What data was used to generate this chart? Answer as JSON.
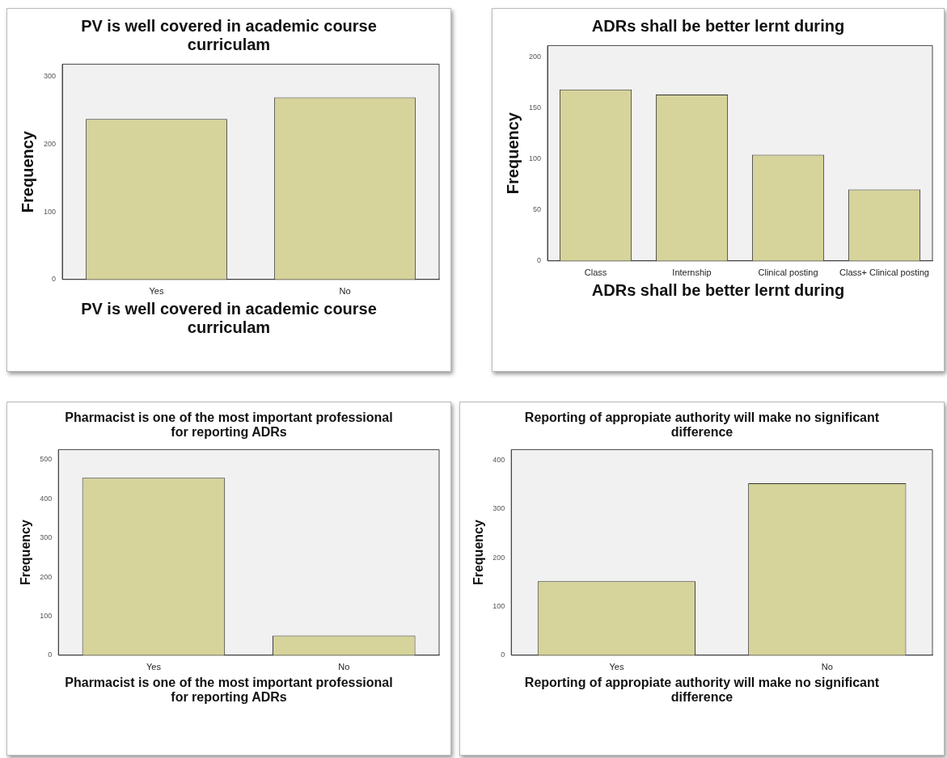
{
  "chart_data": [
    {
      "type": "bar",
      "title": "PV is well covered in academic course curriculam",
      "xlabel": "PV is well covered in academic course curriculam",
      "ylabel": "Frequency",
      "categories": [
        "Yes",
        "No"
      ],
      "values": [
        237,
        269
      ],
      "color": "#d6d49a",
      "ylim": [
        0,
        318
      ],
      "yticks": [
        0,
        100,
        200,
        300
      ]
    },
    {
      "type": "bar",
      "title": "ADRs shall be better lernt during",
      "xlabel": "ADRs shall be better lernt during",
      "ylabel": "Frequency",
      "categories": [
        "Class",
        "Internship",
        "Clinical posting",
        "Class+ Clinical posting"
      ],
      "values": [
        168,
        163,
        104,
        70
      ],
      "color": "#d6d49a",
      "ylim": [
        0,
        211
      ],
      "yticks": [
        0,
        50,
        100,
        150,
        200
      ]
    },
    {
      "type": "bar",
      "title": "Pharmacist is one of the most important professional for reporting ADRs",
      "xlabel": "Pharmacist is one of the most important professional for reporting ADRs",
      "ylabel": "Frequency",
      "categories": [
        "Yes",
        "No"
      ],
      "values": [
        454,
        50
      ],
      "color": "#d6d49a",
      "ylim": [
        0,
        526
      ],
      "yticks": [
        0,
        100,
        200,
        300,
        400,
        500
      ]
    },
    {
      "type": "bar",
      "title": "Reporting of appropiate authority will make no significant difference",
      "xlabel": "Reporting of appropiate authority will make no significant difference",
      "ylabel": "Frequency",
      "categories": [
        "Yes",
        "No"
      ],
      "values": [
        152,
        353
      ],
      "color": "#d6d49a",
      "ylim": [
        0,
        422
      ],
      "yticks": [
        0,
        100,
        200,
        300,
        400
      ]
    }
  ]
}
